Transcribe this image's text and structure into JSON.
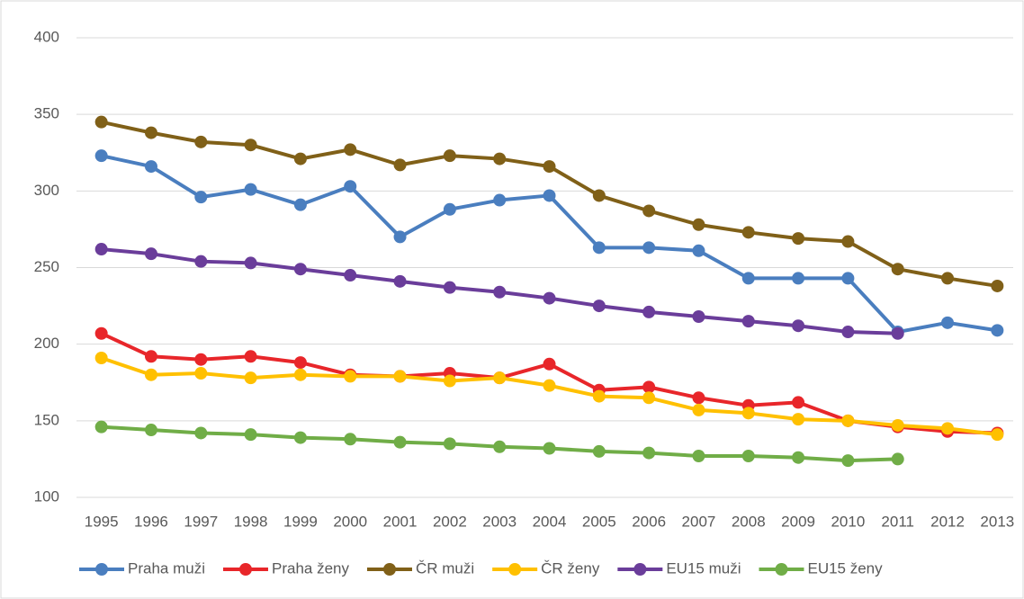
{
  "chart_data": {
    "type": "line",
    "categories": [
      "1995",
      "1996",
      "1997",
      "1998",
      "1999",
      "2000",
      "2001",
      "2002",
      "2003",
      "2004",
      "2005",
      "2006",
      "2007",
      "2008",
      "2009",
      "2010",
      "2011",
      "2012",
      "2013"
    ],
    "series": [
      {
        "name": "Praha muži",
        "color": "#4a7ebf",
        "values": [
          323,
          316,
          296,
          301,
          291,
          303,
          270,
          288,
          294,
          297,
          263,
          263,
          261,
          243,
          243,
          243,
          208,
          214,
          209
        ]
      },
      {
        "name": "Praha ženy",
        "color": "#e8262a",
        "values": [
          207,
          192,
          190,
          192,
          188,
          180,
          179,
          181,
          178,
          187,
          170,
          172,
          165,
          160,
          162,
          150,
          146,
          143,
          142
        ]
      },
      {
        "name": "ČR muži",
        "color": "#806018",
        "values": [
          345,
          338,
          332,
          330,
          321,
          327,
          317,
          323,
          321,
          316,
          297,
          287,
          278,
          273,
          269,
          267,
          249,
          243,
          238
        ]
      },
      {
        "name": "ČR ženy",
        "color": "#ffc000",
        "values": [
          191,
          180,
          181,
          178,
          180,
          179,
          179,
          176,
          178,
          173,
          166,
          165,
          157,
          155,
          151,
          150,
          147,
          145,
          141
        ]
      },
      {
        "name": "EU15 muži",
        "color": "#6a3d9a",
        "values": [
          262,
          259,
          254,
          253,
          249,
          245,
          241,
          237,
          234,
          230,
          225,
          221,
          218,
          215,
          212,
          208,
          207,
          null,
          null
        ]
      },
      {
        "name": "EU15 ženy",
        "color": "#70ad47",
        "values": [
          146,
          144,
          142,
          141,
          139,
          138,
          136,
          135,
          133,
          132,
          130,
          129,
          127,
          127,
          126,
          124,
          125,
          null,
          null
        ]
      }
    ],
    "ylim": [
      100,
      400
    ],
    "yticks": [
      100,
      150,
      200,
      250,
      300,
      350,
      400
    ],
    "grid": true,
    "legend": "bottom"
  }
}
